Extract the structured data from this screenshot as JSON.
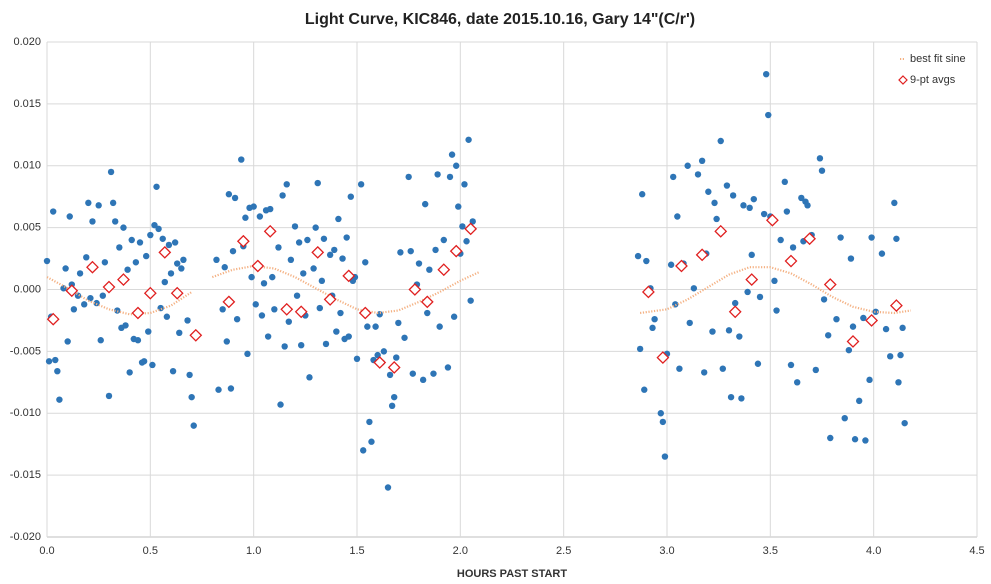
{
  "chart_data": {
    "type": "scatter",
    "title": "Light Curve, KIC846, date 2015.10.16, Gary 14\"(C/r')",
    "x_label": "HOURS PAST START",
    "xlim": [
      0,
      4.5
    ],
    "ylim": [
      -0.02,
      0.02
    ],
    "xticks": [
      {
        "value": 0,
        "label": "0.0"
      },
      {
        "value": 0.5,
        "label": "0.5"
      },
      {
        "value": 1,
        "label": "1.0"
      },
      {
        "value": 1.5,
        "label": "1.5"
      },
      {
        "value": 2,
        "label": "2.0"
      },
      {
        "value": 2.5,
        "label": "2.5"
      },
      {
        "value": 3,
        "label": "3.0"
      },
      {
        "value": 3.5,
        "label": "3.5"
      },
      {
        "value": 4,
        "label": "4.0"
      },
      {
        "value": 4.5,
        "label": "4.5"
      }
    ],
    "yticks": [
      {
        "value": -0.02,
        "label": "-0.020"
      },
      {
        "value": -0.015,
        "label": "-0.015"
      },
      {
        "value": -0.01,
        "label": "-0.010"
      },
      {
        "value": -0.005,
        "label": "-0.005"
      },
      {
        "value": 0,
        "label": "0.000"
      },
      {
        "value": 0.005,
        "label": "0.005"
      },
      {
        "value": 0.01,
        "label": "0.010"
      },
      {
        "value": 0.015,
        "label": "0.015"
      },
      {
        "value": 0.02,
        "label": "0.020"
      }
    ],
    "grid": true,
    "legend": "top-right",
    "series": [
      {
        "color": "#2e75b6",
        "marker": "circle",
        "x": [
          0.0,
          0.01,
          0.02,
          0.03,
          0.04,
          0.05,
          0.06,
          0.08,
          0.09,
          0.1,
          0.11,
          0.12,
          0.13,
          0.15,
          0.16,
          0.18,
          0.19,
          0.2,
          0.21,
          0.22,
          0.24,
          0.25,
          0.26,
          0.27,
          0.28,
          0.3,
          0.31,
          0.32,
          0.33,
          0.34,
          0.35,
          0.36,
          0.37,
          0.38,
          0.39,
          0.4,
          0.41,
          0.42,
          0.43,
          0.44,
          0.45,
          0.46,
          0.47,
          0.48,
          0.49,
          0.5,
          0.51,
          0.52,
          0.53,
          0.54,
          0.55,
          0.56,
          0.57,
          0.58,
          0.59,
          0.6,
          0.61,
          0.62,
          0.63,
          0.64,
          0.65,
          0.66,
          0.68,
          0.69,
          0.7,
          0.71,
          0.82,
          0.83,
          0.85,
          0.86,
          0.87,
          0.88,
          0.89,
          0.9,
          0.91,
          0.92,
          0.94,
          0.95,
          0.96,
          0.97,
          0.98,
          0.99,
          1.0,
          1.01,
          1.03,
          1.04,
          1.05,
          1.06,
          1.07,
          1.08,
          1.09,
          1.1,
          1.12,
          1.13,
          1.14,
          1.15,
          1.16,
          1.17,
          1.18,
          1.2,
          1.21,
          1.22,
          1.23,
          1.24,
          1.25,
          1.26,
          1.27,
          1.29,
          1.3,
          1.31,
          1.32,
          1.33,
          1.34,
          1.35,
          1.37,
          1.38,
          1.39,
          1.4,
          1.41,
          1.42,
          1.43,
          1.44,
          1.45,
          1.46,
          1.47,
          1.48,
          1.49,
          1.5,
          1.52,
          1.53,
          1.54,
          1.55,
          1.56,
          1.57,
          1.58,
          1.59,
          1.6,
          1.61,
          1.62,
          1.63,
          1.65,
          1.66,
          1.67,
          1.68,
          1.69,
          1.7,
          1.71,
          1.73,
          1.75,
          1.76,
          1.77,
          1.79,
          1.8,
          1.82,
          1.83,
          1.84,
          1.85,
          1.87,
          1.88,
          1.89,
          1.9,
          1.92,
          1.94,
          1.95,
          1.96,
          1.97,
          1.98,
          1.99,
          2.0,
          2.01,
          2.02,
          2.03,
          2.04,
          2.05,
          2.06,
          2.86,
          2.87,
          2.88,
          2.89,
          2.9,
          2.92,
          2.93,
          2.94,
          2.97,
          2.98,
          2.99,
          3.0,
          3.02,
          3.03,
          3.04,
          3.05,
          3.06,
          3.08,
          3.1,
          3.11,
          3.13,
          3.15,
          3.17,
          3.18,
          3.19,
          3.2,
          3.22,
          3.23,
          3.24,
          3.26,
          3.27,
          3.29,
          3.3,
          3.31,
          3.32,
          3.33,
          3.35,
          3.36,
          3.37,
          3.39,
          3.4,
          3.41,
          3.42,
          3.44,
          3.45,
          3.47,
          3.48,
          3.49,
          3.5,
          3.52,
          3.53,
          3.55,
          3.57,
          3.58,
          3.6,
          3.61,
          3.63,
          3.65,
          3.66,
          3.67,
          3.68,
          3.7,
          3.72,
          3.74,
          3.75,
          3.76,
          3.78,
          3.79,
          3.82,
          3.84,
          3.86,
          3.88,
          3.89,
          3.9,
          3.91,
          3.93,
          3.95,
          3.96,
          3.98,
          3.99,
          4.01,
          4.04,
          4.06,
          4.08,
          4.1,
          4.11,
          4.12,
          4.13,
          4.14,
          4.15
        ],
        "values": [
          0.0023,
          -0.0058,
          -0.0022,
          0.0063,
          -0.0057,
          -0.0066,
          -0.0089,
          0.0001,
          0.0017,
          -0.0042,
          0.0059,
          0.0004,
          -0.0016,
          -0.0005,
          0.0013,
          -0.0012,
          0.0026,
          0.007,
          -0.0007,
          0.0055,
          -0.0011,
          0.0068,
          -0.0041,
          -0.0005,
          0.0022,
          -0.0086,
          0.0095,
          0.007,
          0.0055,
          -0.0017,
          0.0034,
          -0.0031,
          0.005,
          -0.0029,
          0.0016,
          -0.0067,
          0.004,
          -0.004,
          0.0022,
          -0.0041,
          0.0038,
          -0.0059,
          -0.0058,
          0.0027,
          -0.0034,
          0.0044,
          -0.0061,
          0.0052,
          0.0083,
          0.0049,
          -0.0015,
          0.0041,
          0.0006,
          -0.0022,
          0.0036,
          0.0013,
          -0.0066,
          0.0038,
          0.0021,
          -0.0035,
          0.0017,
          0.0024,
          -0.0025,
          -0.0069,
          -0.0087,
          -0.011,
          0.0024,
          -0.0081,
          -0.0016,
          0.0018,
          -0.0042,
          0.0077,
          -0.008,
          0.0031,
          0.0074,
          -0.0024,
          0.0105,
          0.0035,
          0.0058,
          -0.0052,
          0.0066,
          0.001,
          0.0067,
          -0.0012,
          0.0059,
          -0.0021,
          0.0005,
          0.0064,
          -0.0038,
          0.0065,
          0.001,
          -0.0016,
          0.0034,
          -0.0093,
          0.0076,
          -0.0046,
          0.0085,
          -0.0026,
          0.0024,
          0.0051,
          -0.0005,
          0.0038,
          -0.0045,
          0.0013,
          -0.0021,
          0.004,
          -0.0071,
          0.0017,
          0.005,
          0.0086,
          -0.0015,
          0.0007,
          0.0041,
          -0.0044,
          0.0028,
          -0.0005,
          0.0032,
          -0.0034,
          0.0057,
          -0.0019,
          0.0025,
          -0.004,
          0.0042,
          -0.0038,
          0.0075,
          0.0007,
          0.001,
          -0.0056,
          0.0085,
          -0.013,
          0.0022,
          -0.003,
          -0.0107,
          -0.0123,
          -0.0057,
          -0.003,
          -0.0053,
          -0.002,
          -0.0059,
          -0.005,
          -0.016,
          -0.0069,
          -0.0094,
          -0.0087,
          -0.0055,
          -0.0027,
          0.003,
          -0.0039,
          0.0091,
          0.0031,
          -0.0068,
          0.0004,
          0.0021,
          -0.0073,
          0.0069,
          -0.0019,
          0.0016,
          -0.0068,
          0.0032,
          0.0093,
          -0.003,
          0.004,
          -0.0063,
          0.0091,
          0.0109,
          -0.0022,
          0.01,
          0.0067,
          0.0029,
          0.0051,
          0.0085,
          0.0039,
          0.0121,
          -0.0009,
          0.0055,
          0.0027,
          -0.0048,
          0.0077,
          -0.0081,
          0.0023,
          0.0001,
          -0.0031,
          -0.0024,
          -0.01,
          -0.0107,
          -0.0135,
          -0.0052,
          0.002,
          0.0091,
          -0.0012,
          0.0059,
          -0.0064,
          0.0021,
          0.01,
          -0.0027,
          0.0001,
          0.0093,
          0.0104,
          -0.0067,
          0.0029,
          0.0079,
          -0.0034,
          0.007,
          0.0057,
          0.012,
          -0.0064,
          0.0084,
          -0.0033,
          -0.0087,
          0.0076,
          -0.0011,
          -0.0038,
          -0.0088,
          0.0068,
          -0.0002,
          0.0066,
          0.0028,
          0.0073,
          -0.006,
          -0.0006,
          0.0061,
          0.0174,
          0.0141,
          0.0059,
          0.0007,
          -0.0017,
          0.004,
          0.0087,
          0.0063,
          -0.0061,
          0.0034,
          -0.0075,
          0.0074,
          0.0039,
          0.0071,
          0.0068,
          0.0044,
          -0.0065,
          0.0106,
          0.0096,
          -0.0008,
          -0.0037,
          -0.012,
          -0.0024,
          0.0042,
          -0.0104,
          -0.0049,
          0.0025,
          -0.003,
          -0.0121,
          -0.009,
          -0.0023,
          -0.0122,
          -0.0073,
          0.0042,
          -0.0018,
          0.0029,
          -0.0032,
          -0.0054,
          0.007,
          0.0041,
          -0.0075,
          -0.0053,
          -0.0031,
          -0.0108
        ]
      },
      {
        "name": "best fit sine",
        "color": "#f4b183",
        "line": "dotted",
        "x": [
          0.0,
          0.1,
          0.2,
          0.3,
          0.4,
          0.5,
          0.6,
          0.7,
          0.75,
          0.8,
          0.9,
          1.0,
          1.1,
          1.2,
          1.3,
          1.4,
          1.5,
          1.6,
          1.7,
          1.8,
          1.9,
          2.0,
          2.09,
          2.5,
          2.87,
          3.0,
          3.1,
          3.2,
          3.3,
          3.4,
          3.5,
          3.6,
          3.7,
          3.8,
          3.9,
          4.0,
          4.1,
          4.18
        ],
        "values": [
          0.001,
          0.0001,
          -0.0009,
          -0.0016,
          -0.002,
          -0.0019,
          -0.0013,
          -0.0002,
          null,
          0.001,
          0.0016,
          0.0019,
          0.0017,
          0.001,
          0.0001,
          -0.0008,
          -0.0016,
          -0.0019,
          -0.0017,
          -0.001,
          -0.0002,
          0.0007,
          0.0014,
          null,
          -0.0019,
          -0.0016,
          -0.0008,
          0.0002,
          0.0012,
          0.0018,
          0.0018,
          0.0013,
          0.0004,
          -0.0006,
          -0.0014,
          -0.0018,
          -0.0019,
          -0.0017
        ]
      },
      {
        "name": "9-pt avgs",
        "color": "#e02020",
        "marker": "diamond",
        "x": [
          0.03,
          0.12,
          0.22,
          0.3,
          0.37,
          0.44,
          0.5,
          0.57,
          0.63,
          0.72,
          0.88,
          0.95,
          1.02,
          1.08,
          1.16,
          1.23,
          1.31,
          1.37,
          1.46,
          1.54,
          1.61,
          1.68,
          1.78,
          1.84,
          1.92,
          1.98,
          2.05,
          2.91,
          2.98,
          3.07,
          3.17,
          3.26,
          3.33,
          3.41,
          3.51,
          3.6,
          3.69,
          3.79,
          3.9,
          3.99,
          4.11
        ],
        "values": [
          -0.0024,
          -0.0001,
          0.0018,
          0.0002,
          0.0008,
          -0.0019,
          -0.0003,
          0.003,
          -0.0003,
          -0.0037,
          -0.001,
          0.0039,
          0.0019,
          0.0047,
          -0.0016,
          -0.0018,
          0.003,
          -0.0008,
          0.0011,
          -0.0019,
          -0.0059,
          -0.0063,
          0.0,
          -0.001,
          0.0016,
          0.0031,
          0.0049,
          -0.0002,
          -0.0055,
          0.0019,
          0.0028,
          0.0047,
          -0.0018,
          0.0008,
          0.0056,
          0.0023,
          0.0041,
          0.0004,
          -0.0042,
          -0.0025,
          -0.0013
        ]
      }
    ]
  }
}
